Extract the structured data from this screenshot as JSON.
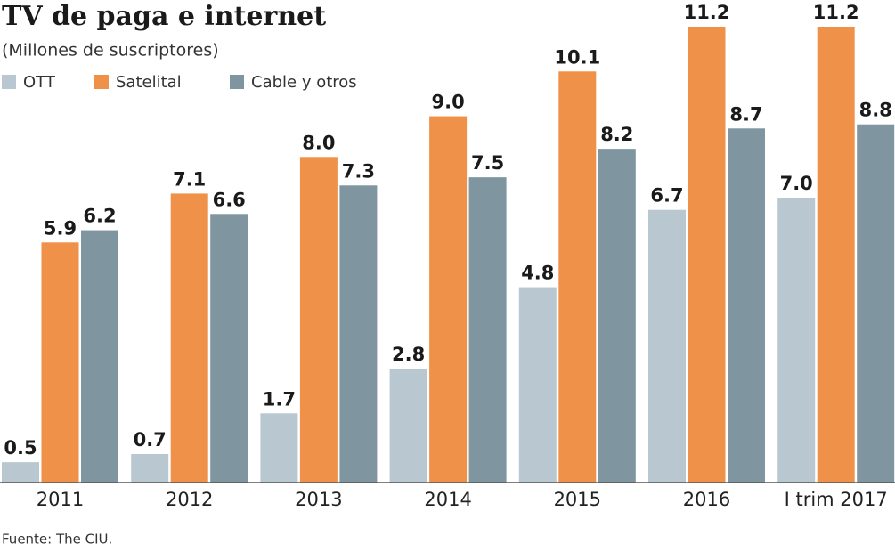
{
  "chart_data": {
    "type": "bar",
    "title": "TV de paga e internet",
    "subtitle": "(Millones de suscriptores)",
    "source": "Fuente: The CIU.",
    "categories": [
      "2011",
      "2012",
      "2013",
      "2014",
      "2015",
      "2016",
      "I trim 2017"
    ],
    "series": [
      {
        "name": "OTT",
        "color": "#b9c7d0",
        "values": [
          0.5,
          0.7,
          1.7,
          2.8,
          4.8,
          6.7,
          7.0
        ],
        "value_labels": [
          "0.5",
          "0.7",
          "1.7",
          "2.8",
          "4.8",
          "6.7",
          "7.0"
        ]
      },
      {
        "name": "Satelital",
        "color": "#f0914a",
        "values": [
          5.9,
          7.1,
          8.0,
          9.0,
          10.1,
          11.2,
          11.2
        ],
        "value_labels": [
          "5.9",
          "7.1",
          "8.0",
          "9.0",
          "10.1",
          "11.2",
          "11.2"
        ]
      },
      {
        "name": "Cable y otros",
        "color": "#7f959f",
        "values": [
          6.2,
          6.6,
          7.3,
          7.5,
          8.2,
          8.7,
          8.8
        ],
        "value_labels": [
          "6.2",
          "6.6",
          "7.3",
          "7.5",
          "8.2",
          "8.7",
          "8.8"
        ]
      }
    ]
  }
}
